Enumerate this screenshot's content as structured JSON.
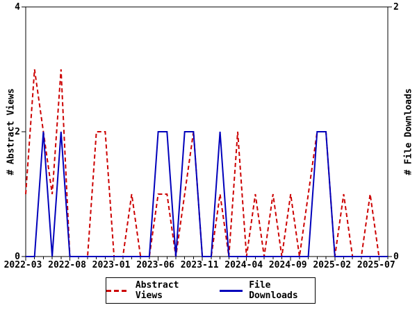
{
  "chart_data": {
    "type": "line",
    "x": [
      "2022-03",
      "2022-04",
      "2022-05",
      "2022-06",
      "2022-07",
      "2022-08",
      "2022-09",
      "2022-10",
      "2022-11",
      "2022-12",
      "2023-01",
      "2023-02",
      "2023-03",
      "2023-04",
      "2023-05",
      "2023-06",
      "2023-07",
      "2023-08",
      "2023-09",
      "2023-10",
      "2023-11",
      "2023-12",
      "2024-01",
      "2024-02",
      "2024-03",
      "2024-04",
      "2024-05",
      "2024-06",
      "2024-07",
      "2024-08",
      "2024-09",
      "2024-10",
      "2024-11",
      "2024-12",
      "2025-01",
      "2025-02",
      "2025-03",
      "2025-04",
      "2025-05",
      "2025-06",
      "2025-07",
      "2025-08"
    ],
    "x_tick_labels": [
      "2022-03",
      "2022-08",
      "2023-01",
      "2023-06",
      "2023-11",
      "2024-04",
      "2024-09",
      "2025-02",
      "2025-07"
    ],
    "series": [
      {
        "name": "Abstract Views",
        "axis": "left",
        "color": "#cc0000",
        "style": "dashed",
        "values": [
          1,
          3,
          2,
          1,
          3,
          0,
          0,
          0,
          2,
          2,
          0,
          0,
          1,
          0,
          0,
          1,
          1,
          0,
          1,
          2,
          0,
          0,
          1,
          0,
          2,
          0,
          1,
          0,
          1,
          0,
          1,
          0,
          1,
          2,
          2,
          0,
          1,
          0,
          0,
          1,
          0,
          0
        ]
      },
      {
        "name": "File Downloads",
        "axis": "right",
        "color": "#0000bb",
        "style": "solid",
        "values": [
          0,
          0,
          1,
          0,
          1,
          0,
          0,
          0,
          0,
          0,
          0,
          0,
          0,
          0,
          0,
          1,
          1,
          0,
          1,
          1,
          0,
          0,
          1,
          0,
          0,
          0,
          0,
          0,
          0,
          0,
          0,
          0,
          0,
          1,
          1,
          0,
          0,
          0,
          0,
          0,
          0,
          0
        ]
      }
    ],
    "left_axis": {
      "label": "# Abstract Views",
      "ticks": [
        0,
        2,
        4
      ],
      "range": [
        0,
        4
      ]
    },
    "right_axis": {
      "label": "# File Downloads",
      "ticks": [
        0,
        2
      ],
      "range": [
        0,
        2
      ]
    },
    "title": "",
    "grid": false,
    "legend_position": "bottom-center"
  },
  "legend": {
    "items": [
      {
        "label": "Abstract Views",
        "color": "#cc0000",
        "style": "dashed"
      },
      {
        "label": "File Downloads",
        "color": "#0000bb",
        "style": "solid"
      }
    ]
  },
  "colors": {
    "axis": "#000000",
    "background": "#ffffff"
  }
}
